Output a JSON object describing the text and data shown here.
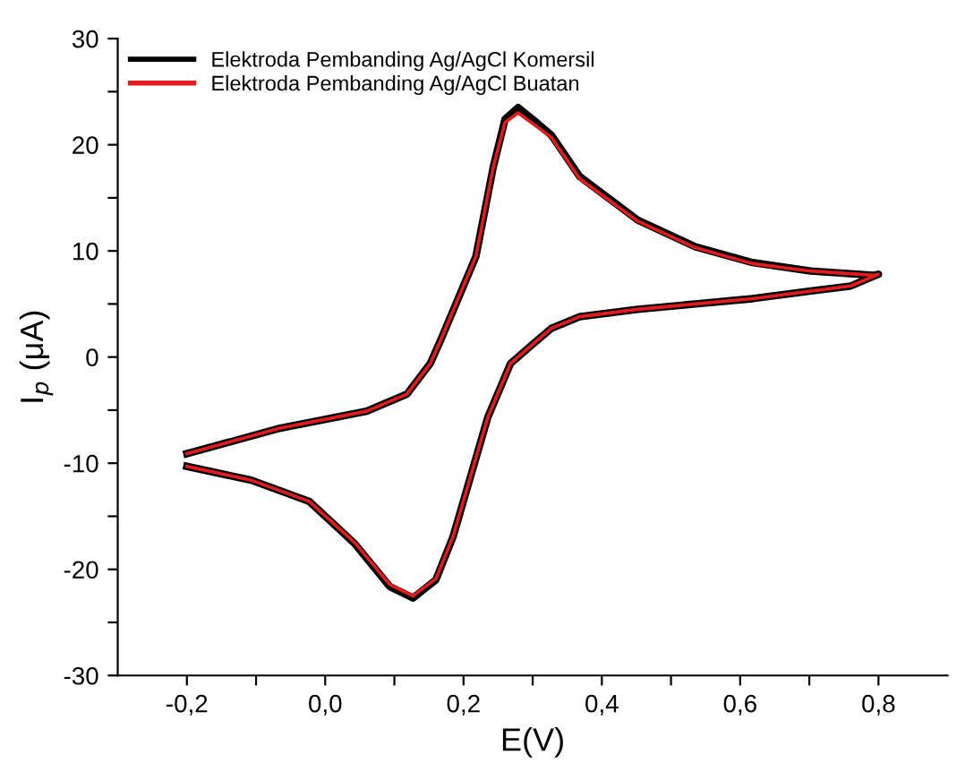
{
  "chart_data": {
    "type": "line",
    "xlabel": "E(V)",
    "ylabel": "I$_{p}$ (μA)",
    "xlim": [
      -0.3,
      0.9
    ],
    "ylim": [
      -30,
      30
    ],
    "xticks": [
      {
        "value": -0.2,
        "label": "-0,2"
      },
      {
        "value": -0.1,
        "label": null
      },
      {
        "value": 0.0,
        "label": "0,0"
      },
      {
        "value": 0.1,
        "label": null
      },
      {
        "value": 0.2,
        "label": "0,2"
      },
      {
        "value": 0.3,
        "label": null
      },
      {
        "value": 0.4,
        "label": "0,4"
      },
      {
        "value": 0.5,
        "label": null
      },
      {
        "value": 0.6,
        "label": "0,6"
      },
      {
        "value": 0.7,
        "label": null
      },
      {
        "value": 0.8,
        "label": "0,8"
      }
    ],
    "yticks": [
      -30,
      {
        "value": -25,
        "label": null
      },
      -20,
      {
        "value": -15,
        "label": null
      },
      -10,
      {
        "value": -5,
        "label": null
      },
      0,
      {
        "value": 5,
        "label": null
      },
      10,
      {
        "value": 15,
        "label": null
      },
      20,
      {
        "value": 25,
        "label": null
      },
      30
    ],
    "grid": false,
    "legend": "top left",
    "marker": "none",
    "line_style": "solid",
    "series": [
      {
        "name": "Elektroda Pembanding Ag/AgCl Komersil",
        "color": "#000000",
        "x": [
          -0.2,
          -0.065,
          0.06,
          0.118,
          0.152,
          0.167,
          0.218,
          0.243,
          0.26,
          0.279,
          0.3,
          0.327,
          0.368,
          0.452,
          0.535,
          0.618,
          0.702,
          0.793,
          0.8,
          0.76,
          0.7,
          0.618,
          0.535,
          0.452,
          0.368,
          0.327,
          0.3,
          0.268,
          0.235,
          0.21,
          0.185,
          0.16,
          0.127,
          0.093,
          0.043,
          -0.023,
          -0.107,
          -0.2
        ],
        "values": [
          -9.1,
          -6.7,
          -5.1,
          -3.5,
          -0.6,
          1.6,
          9.5,
          17.9,
          22.4,
          23.5,
          22.4,
          20.9,
          17.0,
          12.9,
          10.4,
          8.9,
          8.1,
          7.7,
          7.8,
          6.7,
          6.2,
          5.5,
          5.0,
          4.5,
          3.8,
          2.7,
          1.2,
          -0.6,
          -5.7,
          -11.3,
          -16.9,
          -21.0,
          -22.7,
          -21.6,
          -17.6,
          -13.6,
          -11.6,
          -10.3
        ]
      },
      {
        "name": "Elektroda Pembanding Ag/AgCl Buatan",
        "color": "#e41a1c",
        "x": [
          -0.2,
          -0.065,
          0.06,
          0.118,
          0.152,
          0.167,
          0.218,
          0.243,
          0.26,
          0.279,
          0.3,
          0.327,
          0.368,
          0.452,
          0.535,
          0.618,
          0.702,
          0.793,
          0.8,
          0.76,
          0.7,
          0.618,
          0.535,
          0.452,
          0.368,
          0.327,
          0.3,
          0.268,
          0.235,
          0.21,
          0.185,
          0.16,
          0.127,
          0.093,
          0.043,
          -0.023,
          -0.107,
          -0.2
        ],
        "values": [
          -9.1,
          -6.7,
          -5.1,
          -3.5,
          -0.6,
          1.6,
          9.5,
          17.9,
          22.1,
          23.0,
          22.0,
          20.7,
          16.8,
          12.8,
          10.3,
          8.8,
          8.1,
          7.7,
          7.8,
          6.7,
          6.2,
          5.5,
          5.0,
          4.5,
          3.8,
          2.7,
          1.2,
          -0.6,
          -5.7,
          -11.3,
          -16.9,
          -20.9,
          -22.5,
          -21.4,
          -17.5,
          -13.6,
          -11.6,
          -10.3
        ]
      }
    ]
  }
}
